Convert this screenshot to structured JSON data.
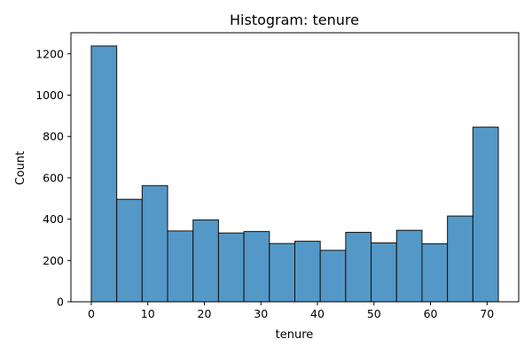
{
  "chart_data": {
    "type": "bar",
    "title": "Histogram: tenure",
    "xlabel": "tenure",
    "ylabel": "Count",
    "xlim": [
      -3.6,
      75.6
    ],
    "ylim": [
      0,
      1302
    ],
    "x_ticks": [
      0,
      10,
      20,
      30,
      40,
      50,
      60,
      70
    ],
    "y_ticks": [
      0,
      200,
      400,
      600,
      800,
      1000,
      1200
    ],
    "bin_edges": [
      0,
      4.5,
      9,
      13.5,
      18,
      22.5,
      27,
      31.5,
      36,
      40.5,
      45,
      49.5,
      54,
      58.5,
      63,
      67.5,
      72
    ],
    "values": [
      1238,
      496,
      562,
      343,
      396,
      333,
      340,
      282,
      293,
      249,
      336,
      285,
      346,
      281,
      415,
      845
    ],
    "grid": false,
    "legend": "none",
    "colors": {
      "bar_fill": "#5498c7",
      "bar_edge": "#111111",
      "axes": "#000000",
      "background": "#ffffff"
    }
  }
}
